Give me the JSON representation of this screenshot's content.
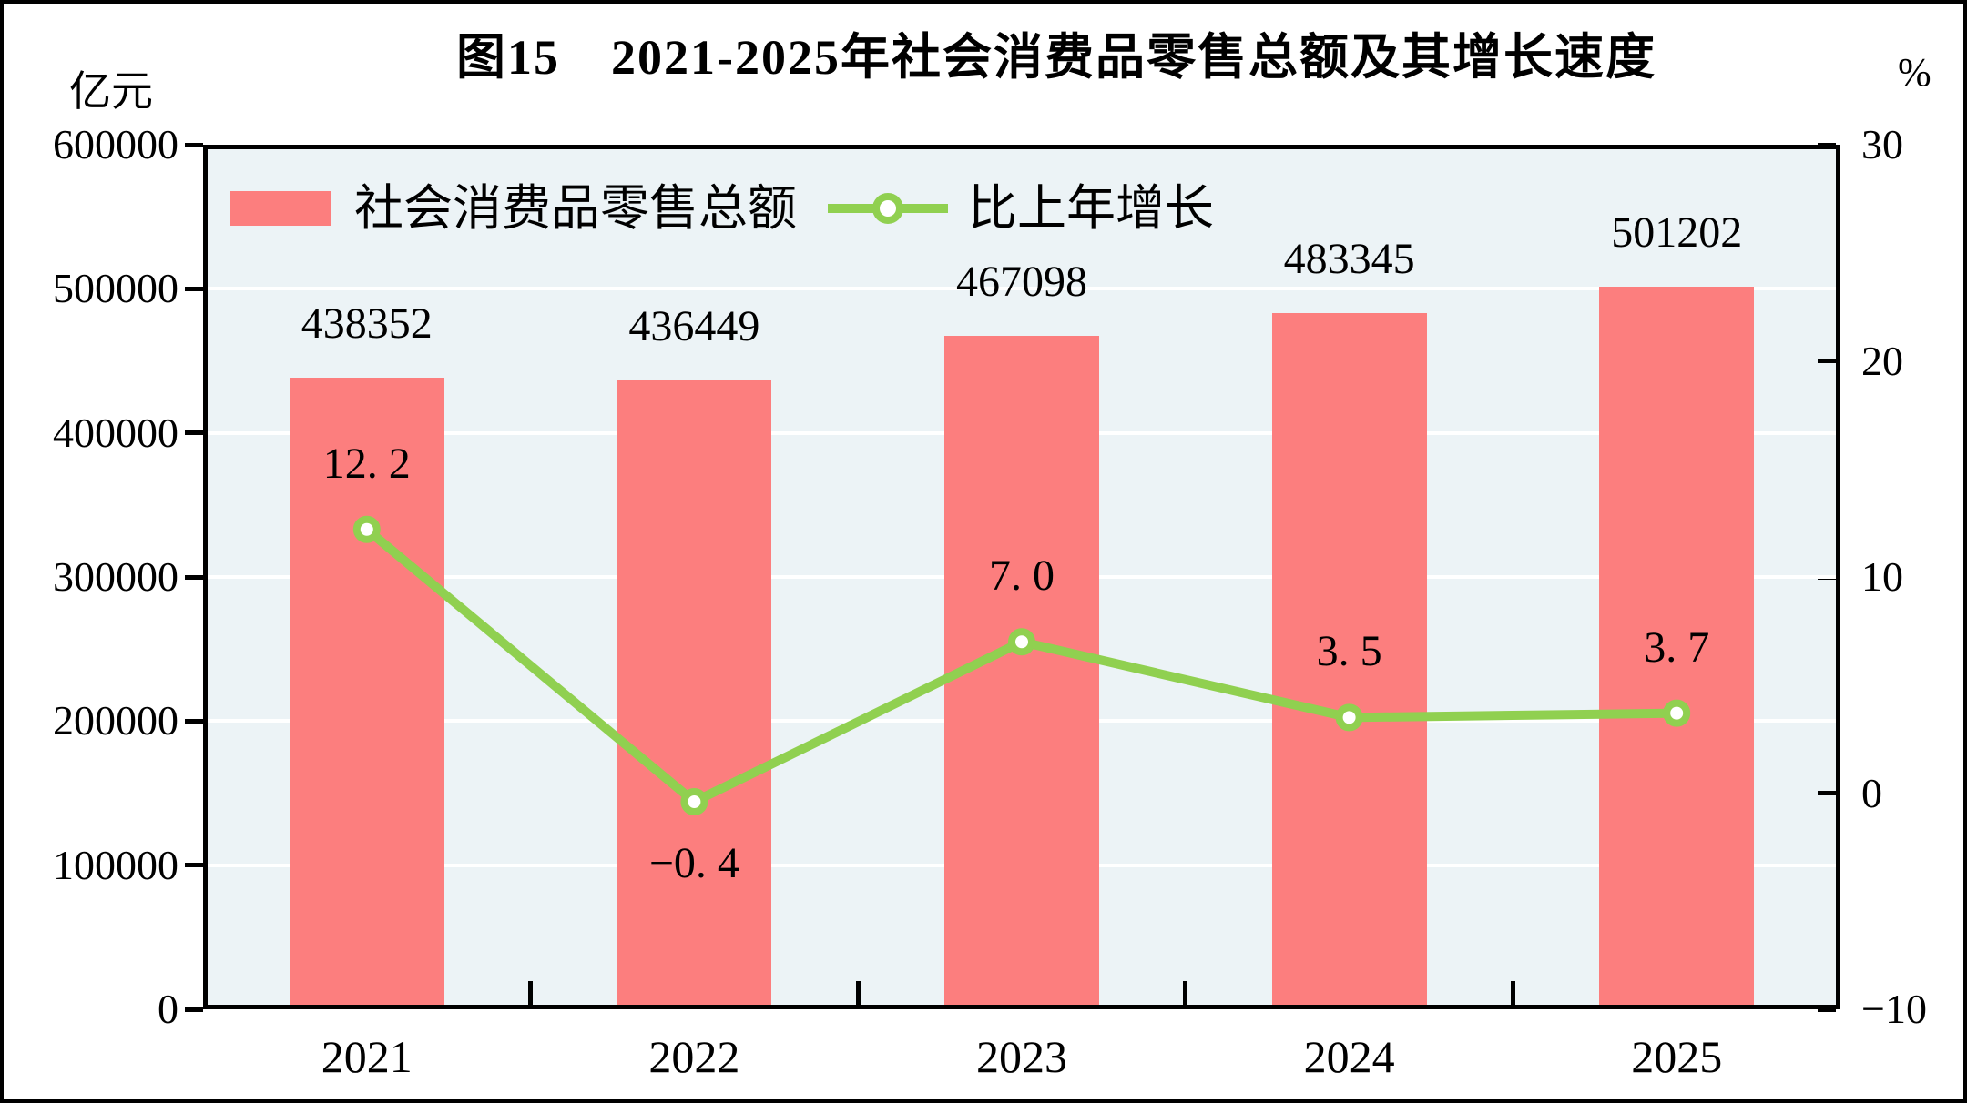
{
  "title": "图15　2021-2025年社会消费品零售总额及其增长速度",
  "left_unit": "亿元",
  "right_unit": "%",
  "legend": {
    "items": [
      {
        "label": "社会消费品零售总额",
        "swatch": "bar"
      },
      {
        "label": "比上年增长",
        "swatch": "line-marker"
      }
    ]
  },
  "colors": {
    "bar": "#fc7e7e",
    "line": "#90d050",
    "marker_fill": "#ffffff",
    "plot_bg": "#ecf3f6",
    "grid": "#ffffff",
    "axis": "#000000",
    "text": "#000000"
  },
  "chart_data": {
    "type": "bar+line",
    "title": "图15　2021-2025年社会消费品零售总额及其增长速度",
    "categories": [
      "2021",
      "2022",
      "2023",
      "2024",
      "2025"
    ],
    "series": [
      {
        "name": "社会消费品零售总额",
        "type": "bar",
        "axis": "left",
        "unit": "亿元",
        "color": "#fc7e7e",
        "values": [
          438352,
          436449,
          467098,
          483345,
          501202
        ],
        "labels": [
          "438352",
          "436449",
          "467098",
          "483345",
          "501202"
        ]
      },
      {
        "name": "比上年增长",
        "type": "line",
        "axis": "right",
        "unit": "%",
        "color": "#90d050",
        "values": [
          12.2,
          -0.4,
          7.0,
          3.5,
          3.7
        ],
        "labels": [
          "12. 2",
          "−0. 4",
          "7. 0",
          "3. 5",
          "3. 7"
        ]
      }
    ],
    "left_axis": {
      "label": "亿元",
      "min": 0,
      "max": 600000,
      "step": 100000,
      "tick_labels": [
        "600000",
        "500000",
        "400000",
        "300000",
        "200000",
        "100000",
        "0"
      ]
    },
    "right_axis": {
      "label": "%",
      "min": -10,
      "max": 30,
      "step": 10,
      "tick_labels": [
        "30",
        "20",
        "10",
        "0",
        "−10"
      ]
    },
    "grid": true,
    "legend_position": "top-left-inside"
  }
}
